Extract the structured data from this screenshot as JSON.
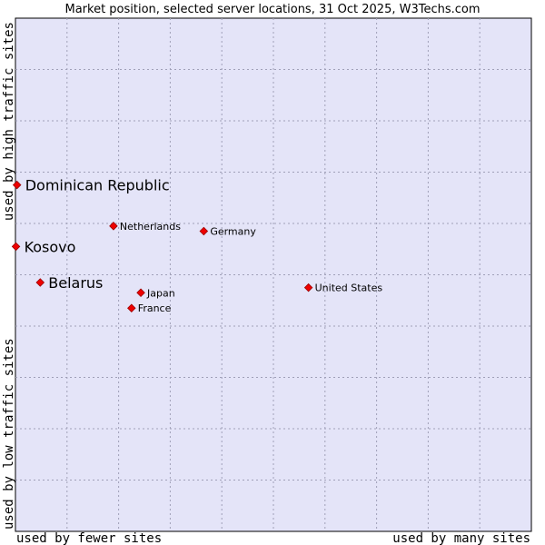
{
  "chart_data": {
    "type": "scatter",
    "title": "Market position, selected server locations, 31 Oct 2025, W3Techs.com",
    "xlabel_left": "used by fewer sites",
    "xlabel_right": "used by many sites",
    "ylabel_bottom": "used by low traffic sites",
    "ylabel_top": "used by high traffic sites",
    "xlim": [
      0,
      100
    ],
    "ylim": [
      0,
      100
    ],
    "grid": true,
    "colors": {
      "plot_background": "#e4e4f8",
      "grid": "#a0a0b8",
      "marker": "#ee0000",
      "marker_edge": "#990000"
    },
    "points": [
      {
        "label": "Dominican Republic",
        "x": 0.3,
        "y": 67.5,
        "emphasis": true
      },
      {
        "label": "Kosovo",
        "x": 0.1,
        "y": 55.5,
        "emphasis": true
      },
      {
        "label": "Belarus",
        "x": 4.8,
        "y": 48.5,
        "emphasis": true
      },
      {
        "label": "Netherlands",
        "x": 19.0,
        "y": 59.5,
        "emphasis": false
      },
      {
        "label": "Germany",
        "x": 36.5,
        "y": 58.5,
        "emphasis": false
      },
      {
        "label": "United States",
        "x": 56.8,
        "y": 47.5,
        "emphasis": false
      },
      {
        "label": "Japan",
        "x": 24.3,
        "y": 46.5,
        "emphasis": false
      },
      {
        "label": "France",
        "x": 22.5,
        "y": 43.5,
        "emphasis": false
      }
    ]
  }
}
